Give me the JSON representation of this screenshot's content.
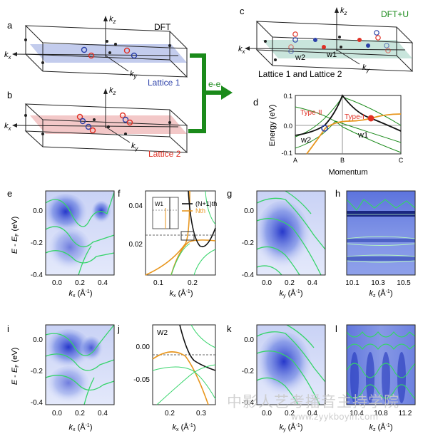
{
  "panel_letters": [
    "a",
    "b",
    "c",
    "d",
    "e",
    "f",
    "g",
    "h",
    "i",
    "j",
    "k",
    "l"
  ],
  "schematic": {
    "kx": "k",
    "kx_sub": "x",
    "ky": "k",
    "ky_sub": "y",
    "kz": "k",
    "kz_sub": "z",
    "dft_label": "DFT",
    "dftu_label": "DFT+U",
    "lattice1": "Lattice 1",
    "lattice2": "Lattice 2",
    "lattice12": "Lattice 1 and Lattice 2",
    "w1": "w1",
    "w2": "w2",
    "ee": "e-e"
  },
  "colors": {
    "lattice1_plane": "#b9c3ea",
    "lattice2_plane": "#f2c2c2",
    "lattice12_plane": "#bfe0d6",
    "green": "#1a8a1a",
    "orange": "#e8961e",
    "red": "#e03024",
    "blue": "#2a3fa8"
  },
  "panel_d": {
    "ylabel": "Energy (eV)",
    "xlabel": "Momentum",
    "yticks": [
      "0.1",
      "0.0",
      "-0.1"
    ],
    "xticks": [
      "A",
      "B",
      "C"
    ],
    "type2": "Type-II",
    "type1": "Type-I",
    "w1": "w1",
    "w2": "w2"
  },
  "arpes": {
    "ylabel_E": "E",
    "ylabel_sep": " - ",
    "ylabel_EF": "E",
    "ylabel_F": "F",
    "ylabel_unit": " (eV)",
    "yticks": [
      "0.0",
      "-0.2",
      "-0.4"
    ],
    "e_xticks": [
      "0.0",
      "0.2",
      "0.4"
    ],
    "g_xticks": [
      "0.0",
      "0.2",
      "0.4"
    ],
    "h_xticks": [
      "10.1",
      "10.3",
      "10.5"
    ],
    "i_xticks": [
      "0.0",
      "0.2",
      "0.4"
    ],
    "k_xticks": [
      "0.0",
      "0.2",
      "0.4"
    ],
    "l_xticks": [
      "10.4",
      "10.8",
      "11.2"
    ],
    "xlabel_kx": "k",
    "xlabel_ky": "k",
    "xlabel_kz": "k",
    "sub_x": "x",
    "sub_y": "y",
    "sub_z": "z",
    "unit": " (Å",
    "unit_exp": "-1",
    "unit_close": ")"
  },
  "panel_f": {
    "legend1": "(N+1)th",
    "legend2": "Nth",
    "yticks": [
      "0.04",
      "0.02"
    ],
    "xticks": [
      "0.1",
      "0.2"
    ],
    "inset_label": "W1"
  },
  "panel_j": {
    "label": "W2",
    "yticks": [
      "0.00",
      "-0.05"
    ],
    "xticks": [
      "0.2",
      "0.3"
    ]
  },
  "watermark": {
    "cn": "中影人艺考播音主持学院",
    "url": "www.zyykboyin.com"
  }
}
